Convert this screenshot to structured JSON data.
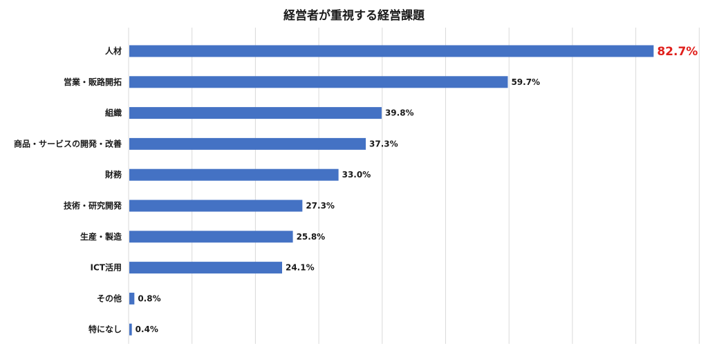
{
  "chart_data": {
    "type": "bar",
    "orientation": "horizontal",
    "title": "経営者が重視する経営課題",
    "categories": [
      "人材",
      "営業・販路開拓",
      "組織",
      "商品・サービスの開発・改善",
      "財務",
      "技術・研究開発",
      "生産・製造",
      "ICT活用",
      "その他",
      "特になし"
    ],
    "values": [
      82.7,
      59.7,
      39.8,
      37.3,
      33.0,
      27.3,
      25.8,
      24.1,
      0.8,
      0.4
    ],
    "value_labels": [
      "82.7%",
      "59.7%",
      "39.8%",
      "37.3%",
      "33.0%",
      "27.3%",
      "25.8%",
      "24.1%",
      "0.8%",
      "0.4%"
    ],
    "highlight_index": 0,
    "xlim": [
      0,
      90
    ],
    "grid": true,
    "legend": "none",
    "colors": {
      "bar": "#4472c4",
      "grid": "#d9d9d9",
      "highlight_label": "#e0201c",
      "text": "#1a1a1a"
    }
  }
}
